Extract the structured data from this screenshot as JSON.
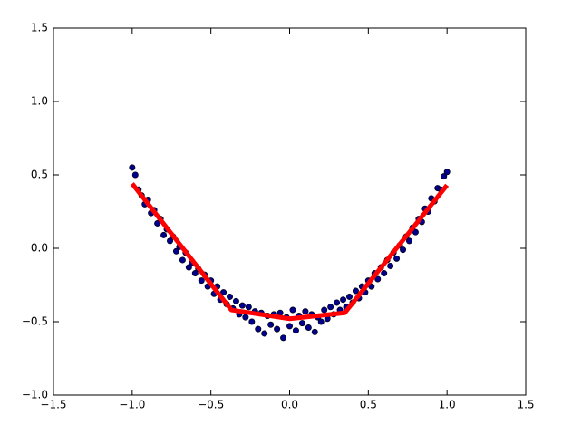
{
  "chart_data": {
    "type": "scatter",
    "xlim": [
      -1.5,
      1.5
    ],
    "ylim": [
      -1.0,
      1.5
    ],
    "xticks": [
      {
        "value": -1.5,
        "label": "−1.5"
      },
      {
        "value": -1.0,
        "label": "−1.0"
      },
      {
        "value": -0.5,
        "label": "−0.5"
      },
      {
        "value": 0.0,
        "label": "0.0"
      },
      0.5,
      {
        "value": 1.0,
        "label": "1.0"
      },
      1.5
    ],
    "yticks": [
      {
        "value": -1.0,
        "label": "−1.0"
      },
      {
        "value": -0.5,
        "label": "−0.5"
      },
      {
        "value": 0.0,
        "label": "0.0"
      },
      0.5,
      {
        "value": 1.0,
        "label": "1.0"
      },
      1.5
    ],
    "grid": false,
    "series": [
      {
        "type": "scatter",
        "color": "#00008b",
        "x": [
          -1.0,
          -0.98,
          -0.96,
          -0.94,
          -0.92,
          -0.9,
          -0.88,
          -0.86,
          -0.84,
          -0.82,
          -0.8,
          -0.78,
          -0.76,
          -0.74,
          -0.72,
          -0.7,
          -0.68,
          -0.66,
          -0.64,
          -0.62,
          -0.6,
          -0.58,
          -0.56,
          -0.54,
          -0.52,
          -0.5,
          -0.48,
          -0.46,
          -0.44,
          -0.42,
          -0.4,
          -0.38,
          -0.36,
          -0.34,
          -0.32,
          -0.3,
          -0.28,
          -0.26,
          -0.24,
          -0.22,
          -0.2,
          -0.18,
          -0.16,
          -0.14,
          -0.12,
          -0.1,
          -0.08,
          -0.06,
          -0.04,
          -0.02,
          0.0,
          0.02,
          0.04,
          0.06,
          0.08,
          0.1,
          0.12,
          0.14,
          0.16,
          0.18,
          0.2,
          0.22,
          0.24,
          0.26,
          0.28,
          0.3,
          0.32,
          0.34,
          0.36,
          0.38,
          0.4,
          0.42,
          0.44,
          0.46,
          0.48,
          0.5,
          0.52,
          0.54,
          0.56,
          0.58,
          0.6,
          0.62,
          0.64,
          0.66,
          0.68,
          0.7,
          0.72,
          0.74,
          0.76,
          0.78,
          0.8,
          0.82,
          0.84,
          0.86,
          0.88,
          0.9,
          0.92,
          0.94,
          0.96,
          0.98,
          1.0
        ],
        "values": [
          0.55,
          0.5,
          0.4,
          0.36,
          0.3,
          0.33,
          0.24,
          0.26,
          0.17,
          0.2,
          0.09,
          0.13,
          0.05,
          0.08,
          -0.02,
          0.01,
          -0.08,
          -0.03,
          -0.13,
          -0.1,
          -0.17,
          -0.14,
          -0.22,
          -0.18,
          -0.26,
          -0.22,
          -0.31,
          -0.26,
          -0.35,
          -0.3,
          -0.38,
          -0.33,
          -0.41,
          -0.36,
          -0.45,
          -0.39,
          -0.47,
          -0.4,
          -0.5,
          -0.43,
          -0.55,
          -0.44,
          -0.58,
          -0.46,
          -0.52,
          -0.45,
          -0.55,
          -0.44,
          -0.61,
          -0.47,
          -0.53,
          -0.42,
          -0.56,
          -0.46,
          -0.51,
          -0.43,
          -0.54,
          -0.45,
          -0.57,
          -0.47,
          -0.5,
          -0.42,
          -0.48,
          -0.4,
          -0.45,
          -0.37,
          -0.42,
          -0.35,
          -0.4,
          -0.33,
          -0.37,
          -0.29,
          -0.34,
          -0.26,
          -0.3,
          -0.22,
          -0.26,
          -0.17,
          -0.21,
          -0.13,
          -0.17,
          -0.08,
          -0.12,
          -0.03,
          -0.07,
          0.02,
          -0.01,
          0.08,
          0.05,
          0.14,
          0.11,
          0.2,
          0.18,
          0.27,
          0.25,
          0.34,
          0.32,
          0.41,
          0.4,
          0.49,
          0.52
        ]
      },
      {
        "type": "line",
        "color": "#ff0000",
        "x": [
          -1.0,
          -0.37,
          0.0,
          0.35,
          1.0
        ],
        "values": [
          0.44,
          -0.42,
          -0.48,
          -0.44,
          0.43
        ]
      }
    ]
  }
}
